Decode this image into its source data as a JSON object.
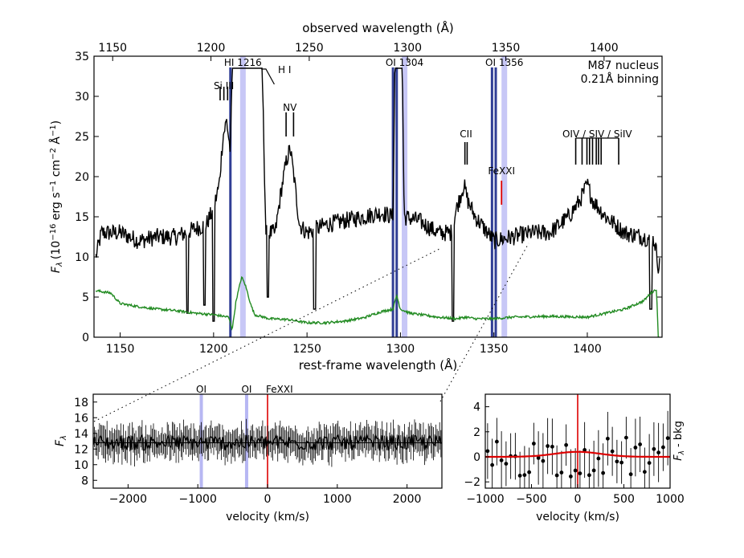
{
  "chart_data": [
    {
      "id": "main",
      "type": "line",
      "title_top_axis": "observed wavelength (Å)",
      "xlabel": "rest-frame wavelength (Å)",
      "ylabel": "F_λ (10^-16 erg s^-1 cm^-2 Å^-1)",
      "ylabel_main": "F",
      "ylabel_sub": "λ",
      "ylabel_rest": "(10",
      "ylabel_e1": "−16",
      "ylabel_unit1": " erg s",
      "ylabel_e2": "−1",
      "ylabel_unit2": " cm",
      "ylabel_e3": "−2",
      "ylabel_unit3": " Å",
      "ylabel_e4": "−1",
      "ylabel_close": ")",
      "xlim": [
        1136,
        1440
      ],
      "ylim": [
        0,
        35
      ],
      "top_xlim": [
        1140.5,
        1429.5
      ],
      "x_ticks": [
        1150,
        1200,
        1250,
        1300,
        1350,
        1400
      ],
      "top_ticks": [
        1150,
        1200,
        1250,
        1300,
        1350,
        1400
      ],
      "y_ticks": [
        0,
        5,
        10,
        15,
        20,
        25,
        30,
        35
      ],
      "annotation": [
        "M87 nucleus",
        "0.21Å binning"
      ],
      "series": [
        {
          "name": "flux",
          "color": "#000000",
          "anchors": [
            [
              1137,
              10
            ],
            [
              1140,
              13
            ],
            [
              1150,
              13
            ],
            [
              1160,
              12
            ],
            [
              1170,
              12.5
            ],
            [
              1180,
              12.5
            ],
            [
              1190,
              13.5
            ],
            [
              1196,
              14
            ],
            [
              1200,
              16
            ],
            [
              1203,
              19
            ],
            [
              1205,
              25
            ],
            [
              1207,
              27
            ],
            [
              1209,
              23
            ],
            [
              1210,
              33.5
            ],
            [
              1226,
              33.5
            ],
            [
              1228,
              13
            ],
            [
              1233,
              13
            ],
            [
              1236,
              18
            ],
            [
              1239,
              22
            ],
            [
              1241,
              23.5
            ],
            [
              1243,
              20
            ],
            [
              1246,
              14
            ],
            [
              1250,
              13
            ],
            [
              1260,
              14
            ],
            [
              1270,
              14.5
            ],
            [
              1280,
              15
            ],
            [
              1290,
              15.5
            ],
            [
              1296,
              15
            ],
            [
              1297,
              33.5
            ],
            [
              1301,
              33.5
            ],
            [
              1302,
              15
            ],
            [
              1310,
              14.5
            ],
            [
              1320,
              13
            ],
            [
              1327,
              13
            ],
            [
              1330,
              16
            ],
            [
              1334,
              19
            ],
            [
              1336,
              17
            ],
            [
              1340,
              15
            ],
            [
              1350,
              12
            ],
            [
              1360,
              12.5
            ],
            [
              1370,
              13
            ],
            [
              1380,
              13
            ],
            [
              1390,
              15
            ],
            [
              1396,
              17
            ],
            [
              1400,
              19
            ],
            [
              1403,
              17
            ],
            [
              1410,
              15
            ],
            [
              1420,
              13
            ],
            [
              1430,
              12.5
            ],
            [
              1436,
              12
            ],
            [
              1438,
              9
            ]
          ],
          "dips": [
            [
              1186,
              3
            ],
            [
              1195,
              4
            ],
            [
              1200,
              2
            ],
            [
              1229,
              5
            ],
            [
              1254,
              3.5
            ],
            [
              1328,
              2
            ],
            [
              1434,
              3.5
            ]
          ],
          "noise": 1.1
        },
        {
          "name": "error",
          "color": "#228b22",
          "anchors": [
            [
              1137,
              5.8
            ],
            [
              1145,
              5.5
            ],
            [
              1150,
              4.2
            ],
            [
              1160,
              3.8
            ],
            [
              1170,
              3.5
            ],
            [
              1180,
              3.3
            ],
            [
              1190,
              3.0
            ],
            [
              1200,
              2.8
            ],
            [
              1208,
              2.5
            ],
            [
              1210,
              1
            ],
            [
              1212,
              4.5
            ],
            [
              1215,
              7.5
            ],
            [
              1217,
              6.5
            ],
            [
              1220,
              4
            ],
            [
              1222,
              2.8
            ],
            [
              1230,
              2.3
            ],
            [
              1240,
              2.2
            ],
            [
              1250,
              1.8
            ],
            [
              1260,
              1.8
            ],
            [
              1270,
              2
            ],
            [
              1280,
              2.4
            ],
            [
              1290,
              3.2
            ],
            [
              1296,
              3.5
            ],
            [
              1298,
              5.2
            ],
            [
              1300,
              3.5
            ],
            [
              1305,
              3
            ],
            [
              1320,
              2.5
            ],
            [
              1330,
              2.3
            ],
            [
              1335,
              2.5
            ],
            [
              1340,
              2.3
            ],
            [
              1350,
              2.3
            ],
            [
              1360,
              2.5
            ],
            [
              1380,
              2.6
            ],
            [
              1400,
              2.5
            ],
            [
              1420,
              3.5
            ],
            [
              1430,
              4.5
            ],
            [
              1434,
              5.5
            ],
            [
              1437,
              6
            ],
            [
              1438,
              0
            ]
          ],
          "noise": 0.15
        }
      ],
      "bands": [
        {
          "label": "HI 1216",
          "x": 1215.7,
          "color": "#9999ee"
        },
        {
          "label": "OI 1304",
          "x": 1302.2,
          "color": "#9999ee"
        },
        {
          "label": "OI 1356",
          "x": 1355.6,
          "color": "#9999ee"
        }
      ],
      "absorber_lines": [
        1209,
        1296,
        1298,
        1349,
        1351
      ],
      "line_labels": [
        {
          "label": "Si III",
          "y": 30.5,
          "ticks": [
            1203.5,
            1205.5,
            1207.5
          ],
          "tick_low": 29.5,
          "tick_high": 31.2
        },
        {
          "label": "H I",
          "y": 32.5,
          "ticks": [],
          "tick_low": 0,
          "tick_high": 0
        },
        {
          "label": "NV",
          "y": 27.8,
          "ticks": [
            1238.8,
            1242.8
          ],
          "tick_low": 25,
          "tick_high": 28
        },
        {
          "label": "CII",
          "y": 24.5,
          "ticks": [
            1334.5,
            1335.7
          ],
          "tick_low": 21.5,
          "tick_high": 24.3
        },
        {
          "label": "OIV / SIV / SiIV",
          "y": 24.5,
          "ticks": [
            1393.8,
            1397.2,
            1399.8,
            1401.2,
            1402.8,
            1404.8,
            1406.0,
            1407.4,
            1416.8
          ],
          "tick_low": 21.5,
          "tick_high": 24.8
        }
      ],
      "fexxi": {
        "label": "FeXXI",
        "x": 1354.1,
        "color": "#dd0000"
      }
    },
    {
      "id": "bottom-left",
      "type": "line",
      "xlabel": "velocity (km/s)",
      "ylabel": "F_λ",
      "xlim": [
        -2500,
        2500
      ],
      "ylim": [
        7,
        19
      ],
      "x_ticks": [
        -2000,
        -1000,
        0,
        1000,
        2000
      ],
      "y_ticks": [
        8,
        10,
        12,
        14,
        16,
        18
      ],
      "baseline": 12.8,
      "noise": 1.0,
      "error_bar": 1.8,
      "bands": [
        {
          "label": "OI",
          "x": -950,
          "color": "#9999ee"
        },
        {
          "label": "OI",
          "x": -300,
          "color": "#9999ee"
        }
      ],
      "marker": {
        "label": "FeXXI",
        "x": 0,
        "color": "#dd0000"
      }
    },
    {
      "id": "bottom-right",
      "type": "scatter",
      "xlabel": "velocity (km/s)",
      "ylabel": "F_λ - bkg",
      "xlim": [
        -1000,
        1000
      ],
      "ylim": [
        -2.5,
        5
      ],
      "x_ticks": [
        -1000,
        -500,
        0,
        500,
        1000
      ],
      "y_ticks": [
        -2,
        0,
        2,
        4
      ],
      "n_points": 40,
      "error_bar": 2.0,
      "fit": {
        "amplitude": 0.4,
        "center": 0,
        "sigma": 250,
        "color": "#dd0000"
      },
      "marker": {
        "x": 0,
        "color": "#dd0000"
      }
    }
  ]
}
